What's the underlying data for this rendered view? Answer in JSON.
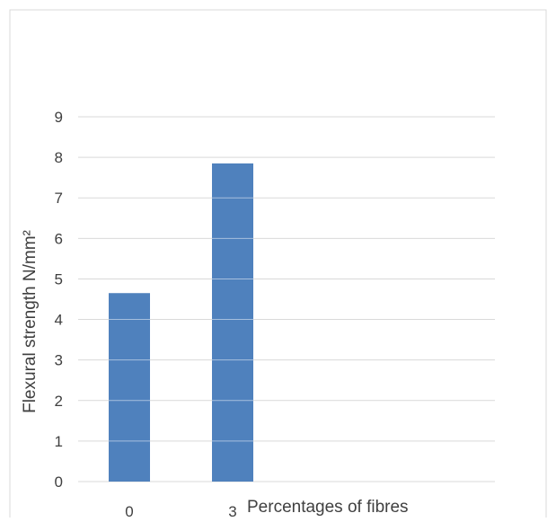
{
  "chart_data": {
    "type": "bar",
    "categories": [
      "0",
      "3"
    ],
    "values": [
      4.65,
      7.85
    ],
    "ylim": [
      0,
      9
    ],
    "yticks": [
      0,
      1,
      2,
      3,
      4,
      5,
      6,
      7,
      8,
      9
    ],
    "ylabel": "Flexural strength N/mm²",
    "xlabel": "Percentages of fibres",
    "grid": true,
    "bar_color": "#4f81bd",
    "grid_color": "#d9d9d9",
    "border_color": "#d9d9d9"
  }
}
